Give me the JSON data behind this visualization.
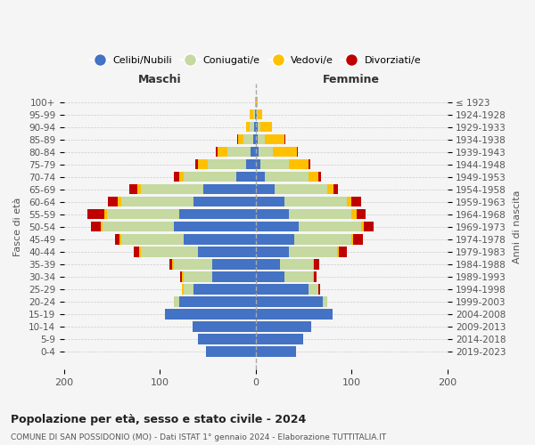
{
  "age_groups": [
    "0-4",
    "5-9",
    "10-14",
    "15-19",
    "20-24",
    "25-29",
    "30-34",
    "35-39",
    "40-44",
    "45-49",
    "50-54",
    "55-59",
    "60-64",
    "65-69",
    "70-74",
    "75-79",
    "80-84",
    "85-89",
    "90-94",
    "95-99",
    "100+"
  ],
  "birth_years": [
    "2019-2023",
    "2014-2018",
    "2009-2013",
    "2004-2008",
    "1999-2003",
    "1994-1998",
    "1989-1993",
    "1984-1988",
    "1979-1983",
    "1974-1978",
    "1969-1973",
    "1964-1968",
    "1959-1963",
    "1954-1958",
    "1949-1953",
    "1944-1948",
    "1939-1943",
    "1934-1938",
    "1929-1933",
    "1924-1928",
    "≤ 1923"
  ],
  "males": {
    "celibi": [
      52,
      60,
      66,
      95,
      80,
      65,
      45,
      45,
      60,
      75,
      85,
      80,
      65,
      55,
      20,
      10,
      5,
      3,
      2,
      1,
      0
    ],
    "coniugati": [
      0,
      0,
      0,
      0,
      5,
      10,
      30,
      40,
      60,
      65,
      75,
      75,
      75,
      65,
      55,
      40,
      25,
      10,
      4,
      2,
      0
    ],
    "vedovi": [
      0,
      0,
      0,
      0,
      0,
      2,
      2,
      2,
      2,
      2,
      2,
      3,
      4,
      4,
      5,
      10,
      10,
      5,
      4,
      3,
      1
    ],
    "divorziati": [
      0,
      0,
      0,
      0,
      0,
      0,
      2,
      3,
      5,
      5,
      10,
      18,
      10,
      8,
      5,
      3,
      2,
      1,
      0,
      0,
      0
    ]
  },
  "females": {
    "nubili": [
      42,
      50,
      58,
      80,
      70,
      55,
      30,
      25,
      35,
      40,
      45,
      35,
      30,
      20,
      10,
      5,
      3,
      2,
      2,
      1,
      0
    ],
    "coniugate": [
      0,
      0,
      0,
      0,
      5,
      10,
      30,
      35,
      50,
      60,
      65,
      65,
      65,
      55,
      45,
      30,
      15,
      8,
      3,
      1,
      0
    ],
    "vedove": [
      0,
      0,
      0,
      0,
      0,
      0,
      1,
      1,
      2,
      2,
      3,
      5,
      5,
      6,
      10,
      20,
      25,
      20,
      12,
      5,
      2
    ],
    "divorziate": [
      0,
      0,
      0,
      0,
      0,
      2,
      3,
      5,
      8,
      10,
      10,
      10,
      10,
      5,
      3,
      2,
      1,
      1,
      0,
      0,
      0
    ]
  },
  "color_celibi": "#4472c4",
  "color_coniugati": "#c5d9a0",
  "color_vedovi": "#ffc000",
  "color_divorziati": "#c00000",
  "xlim": 200,
  "title": "Popolazione per età, sesso e stato civile - 2024",
  "subtitle": "COMUNE DI SAN POSSIDONIO (MO) - Dati ISTAT 1° gennaio 2024 - Elaborazione TUTTITALIA.IT",
  "ylabel": "Fasce di età",
  "right_label": "Anni di nascita",
  "bg_color": "#f5f5f5"
}
